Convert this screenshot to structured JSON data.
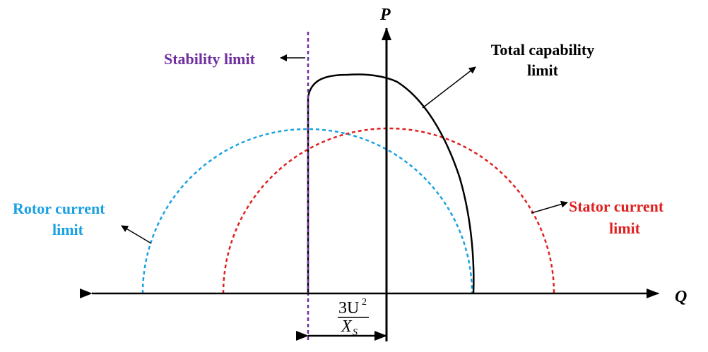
{
  "axes": {
    "x_label": "Q",
    "y_label": "P"
  },
  "labels": {
    "stability": "Stability limit",
    "total_line1": "Total capability",
    "total_line2": "limit",
    "rotor_line1": "Rotor current",
    "rotor_line2": "limit",
    "stator_line1": "Stator current",
    "stator_line2": "limit"
  },
  "offset_label": {
    "numerator": "3U",
    "numerator_sup": "2",
    "denominator": "X",
    "denominator_sub": "S"
  },
  "colors": {
    "axis": "#000000",
    "stability": "#7030a0",
    "rotor": "#1ba1e2",
    "stator": "#e02020",
    "total": "#000000"
  }
}
